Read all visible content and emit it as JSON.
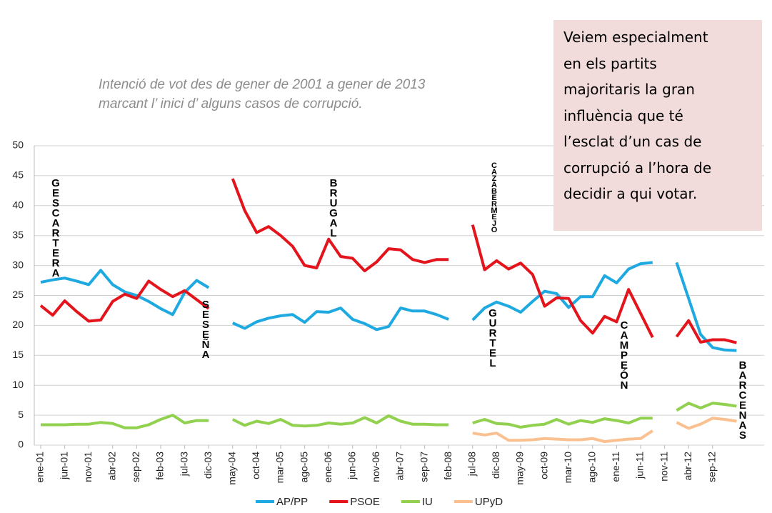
{
  "chart_data": {
    "type": "line",
    "title": [
      "Intenció de vot des de gener  de 2001 a gener de 2013",
      "marcant l’ inici d’ alguns casos de corrupció."
    ],
    "note": [
      "Veiem especialment",
      "en els partits",
      "majoritaris la gran",
      "influència que té",
      "l’esclat d’un cas de",
      "corrupció a l’hora de",
      "decidir a qui votar."
    ],
    "annotations": [
      "GESCARTERA",
      "SESEÑA",
      "BRUGAL",
      "CAZABERMEJO",
      "GURTEL",
      "CAMPEÓN",
      "BARCENAS"
    ],
    "categories": [
      "ene-01",
      null,
      "jun-01",
      null,
      "nov-01",
      null,
      "abr-02",
      null,
      "sep-02",
      null,
      "feb-03",
      null,
      "jul-03",
      null,
      "dic-03",
      null,
      "may-04",
      null,
      "oct-04",
      null,
      "mar-05",
      null,
      "ago-05",
      null,
      "ene-06",
      null,
      "jun-06",
      null,
      "nov-06",
      null,
      "abr-07",
      null,
      "sep-07",
      null,
      "feb-08",
      null,
      "jul-08",
      null,
      "dic-08",
      null,
      "may-09",
      null,
      "oct-09",
      null,
      "mar-10",
      null,
      "ago-10",
      null,
      "ene-11",
      null,
      "jun-11",
      null,
      "nov-11",
      null,
      "abr-12",
      null,
      "sep-12",
      null,
      null
    ],
    "series": [
      {
        "name": "AP/PP",
        "color": "#1fa9e1",
        "values": [
          27.2,
          27.6,
          27.9,
          27.4,
          26.8,
          29.2,
          26.8,
          25.6,
          25,
          24,
          22.8,
          21.8,
          25.5,
          27.5,
          26.3,
          null,
          20.4,
          19.5,
          20.6,
          21.2,
          21.6,
          21.8,
          20.5,
          22.3,
          22.2,
          22.9,
          21,
          20.3,
          19.3,
          19.8,
          22.9,
          22.4,
          22.4,
          21.8,
          21,
          null,
          20.9,
          22.9,
          23.9,
          23.2,
          22.2,
          24,
          25.7,
          25.3,
          23,
          24.8,
          24.8,
          28.3,
          27.1,
          29.4,
          30.3,
          30.5,
          null,
          30.5,
          24.5,
          18.5,
          16.3,
          15.9,
          15.8
        ]
      },
      {
        "name": "PSOE",
        "color": "#e3141b",
        "values": [
          23.3,
          21.7,
          24.1,
          22.3,
          20.7,
          20.9,
          24,
          25.2,
          24.5,
          27.4,
          26,
          24.8,
          25.8,
          24.3,
          22.8,
          null,
          44.5,
          39.2,
          35.5,
          36.5,
          35,
          33.2,
          30,
          29.6,
          34.4,
          31.5,
          31.2,
          29.1,
          30.6,
          32.8,
          32.6,
          31,
          30.5,
          31,
          31,
          null,
          36.8,
          29.3,
          30.8,
          29.4,
          30.4,
          28.5,
          23.2,
          24.6,
          24.5,
          20.8,
          18.7,
          21.5,
          20.6,
          26,
          22,
          18,
          null,
          18.1,
          20.8,
          17.2,
          17.6,
          17.6,
          17.1
        ]
      },
      {
        "name": "IU",
        "color": "#92d050",
        "values": [
          3.4,
          3.4,
          3.4,
          3.5,
          3.5,
          3.8,
          3.6,
          2.9,
          2.9,
          3.4,
          4.3,
          5,
          3.7,
          4.1,
          4.1,
          null,
          4.3,
          3.3,
          4,
          3.6,
          4.3,
          3.3,
          3.2,
          3.3,
          3.7,
          3.5,
          3.7,
          4.6,
          3.7,
          4.9,
          4,
          3.5,
          3.5,
          3.4,
          3.4,
          null,
          3.7,
          4.3,
          3.6,
          3.5,
          3,
          3.3,
          3.5,
          4.3,
          3.5,
          4.1,
          3.8,
          4.4,
          4.1,
          3.7,
          4.5,
          4.5,
          null,
          5.8,
          7,
          6.2,
          7,
          6.8,
          6.5
        ]
      },
      {
        "name": "UPyD",
        "color": "#fac090",
        "values": [
          null,
          null,
          null,
          null,
          null,
          null,
          null,
          null,
          null,
          null,
          null,
          null,
          null,
          null,
          null,
          null,
          null,
          null,
          null,
          null,
          null,
          null,
          null,
          null,
          null,
          null,
          null,
          null,
          null,
          null,
          null,
          null,
          null,
          null,
          null,
          null,
          2,
          1.7,
          2,
          0.8,
          0.8,
          0.9,
          1.1,
          1,
          0.9,
          0.9,
          1.1,
          0.6,
          0.8,
          1,
          1.1,
          2.4,
          null,
          3.8,
          2.8,
          3.5,
          4.5,
          4.3,
          4
        ]
      }
    ],
    "ylim": [
      0,
      50
    ],
    "yticks": [
      0,
      5,
      10,
      15,
      20,
      25,
      30,
      35,
      40,
      45,
      50
    ],
    "grid": true,
    "legend": "bottom"
  }
}
